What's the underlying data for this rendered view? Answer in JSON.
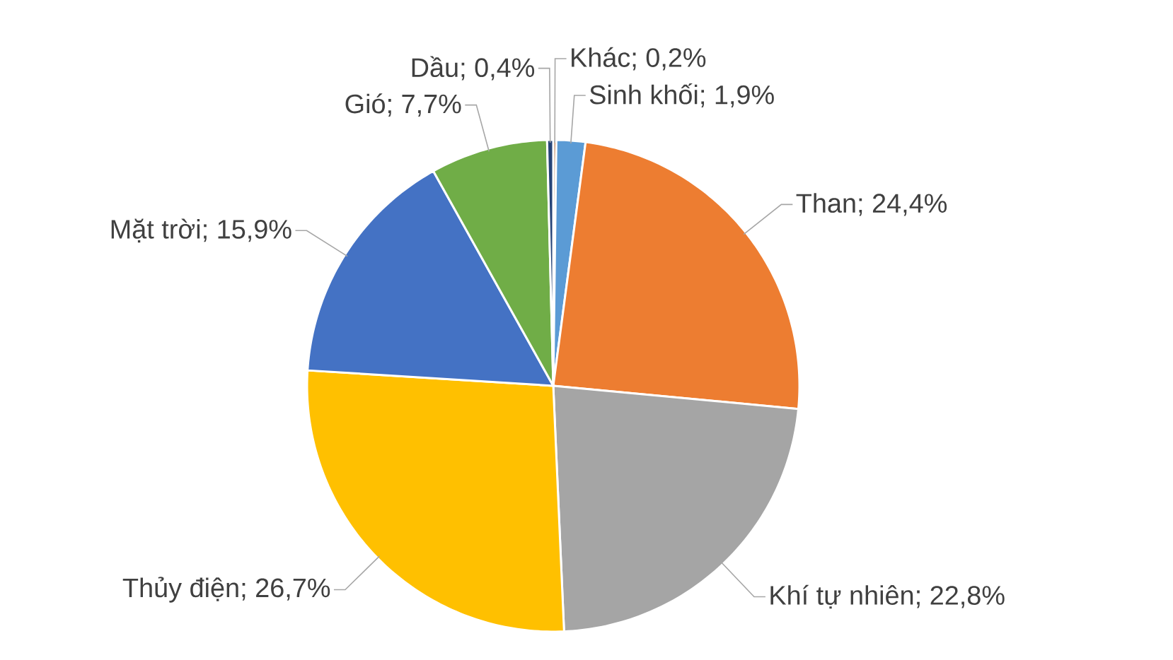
{
  "chart_data": {
    "type": "pie",
    "categories": [
      "Khác",
      "Sinh khối",
      "Than",
      "Khí tự nhiên",
      "Thủy điện",
      "Mặt trời",
      "Gió",
      "Dầu"
    ],
    "values": [
      0.2,
      1.9,
      24.4,
      22.8,
      26.7,
      15.9,
      7.7,
      0.4
    ],
    "value_labels": [
      "; 0,2%",
      "; 1,9%",
      "; 24,4%",
      "; 22,8%",
      "; 26,7%",
      "; 15,9%",
      "; 7,7%",
      "; 0,4%"
    ],
    "colors": [
      "#9e480e",
      "#5b9bd5",
      "#ed7d31",
      "#a5a5a5",
      "#ffc000",
      "#4472c4",
      "#70ad47",
      "#264478"
    ]
  }
}
